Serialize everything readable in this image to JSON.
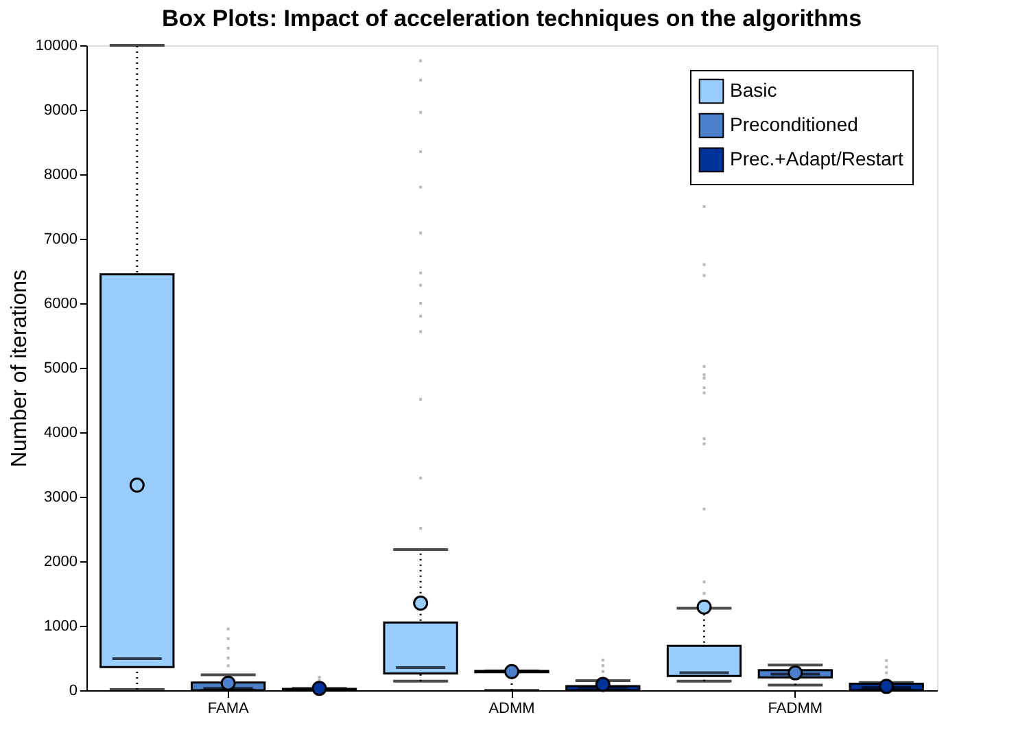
{
  "chart_data": {
    "type": "box",
    "title": "Box Plots: Impact of acceleration techniques on the algorithms",
    "ylabel": "Number of iterations",
    "categories": [
      "FAMA",
      "ADMM",
      "FADMM"
    ],
    "series": [
      {
        "name": "Basic",
        "color": "#99ccff",
        "boxes": [
          {
            "low": 10,
            "q1": 360,
            "median": 490,
            "q3": 6450,
            "high": 10000,
            "mean": 3180
          },
          {
            "low": 140,
            "q1": 260,
            "median": 350,
            "q3": 1050,
            "high": 2180,
            "mean": 1350,
            "outliers": [
              2510,
              3290,
              4510,
              5560,
              5800,
              6000,
              6280,
              6470,
              7090,
              7800,
              8350,
              8960,
              9460,
              9760
            ]
          },
          {
            "low": 140,
            "q1": 220,
            "median": 270,
            "q3": 690,
            "high": 1270,
            "mean": 1290,
            "outliers": [
              1500,
              1680,
              2810,
              3820,
              3900,
              4610,
              4690,
              4840,
              4890,
              5020,
              6430,
              6600,
              7500
            ]
          }
        ]
      },
      {
        "name": "Preconditioned",
        "color": "#4d80cc",
        "boxes": [
          {
            "low": 0,
            "q1": 0,
            "median": 30,
            "q3": 120,
            "high": 240,
            "mean": 110,
            "outliers": [
              380,
              500,
              650,
              800,
              950
            ]
          },
          {
            "low": 0,
            "q1": 280,
            "median": 290,
            "q3": 300,
            "high": 300,
            "mean": 290
          },
          {
            "low": 80,
            "q1": 200,
            "median": 250,
            "q3": 310,
            "high": 390,
            "mean": 270
          }
        ]
      },
      {
        "name": "Prec.+Adapt/Restart",
        "color": "#003399",
        "boxes": [
          {
            "low": 0,
            "q1": 0,
            "median": 10,
            "q3": 20,
            "high": 30,
            "mean": 30,
            "outliers": [
              150,
              200
            ]
          },
          {
            "low": 0,
            "q1": 0,
            "median": 50,
            "q3": 65,
            "high": 150,
            "mean": 90,
            "outliers": [
              290,
              380,
              470
            ]
          },
          {
            "low": 0,
            "q1": 0,
            "median": 40,
            "q3": 100,
            "high": 120,
            "mean": 60,
            "outliers": [
              270,
              360,
              460
            ]
          }
        ]
      }
    ],
    "ylim": [
      0,
      10000
    ],
    "yticks": [
      0,
      1000,
      2000,
      3000,
      4000,
      5000,
      6000,
      7000,
      8000,
      9000,
      10000
    ],
    "legend": "top right",
    "grid": false
  }
}
